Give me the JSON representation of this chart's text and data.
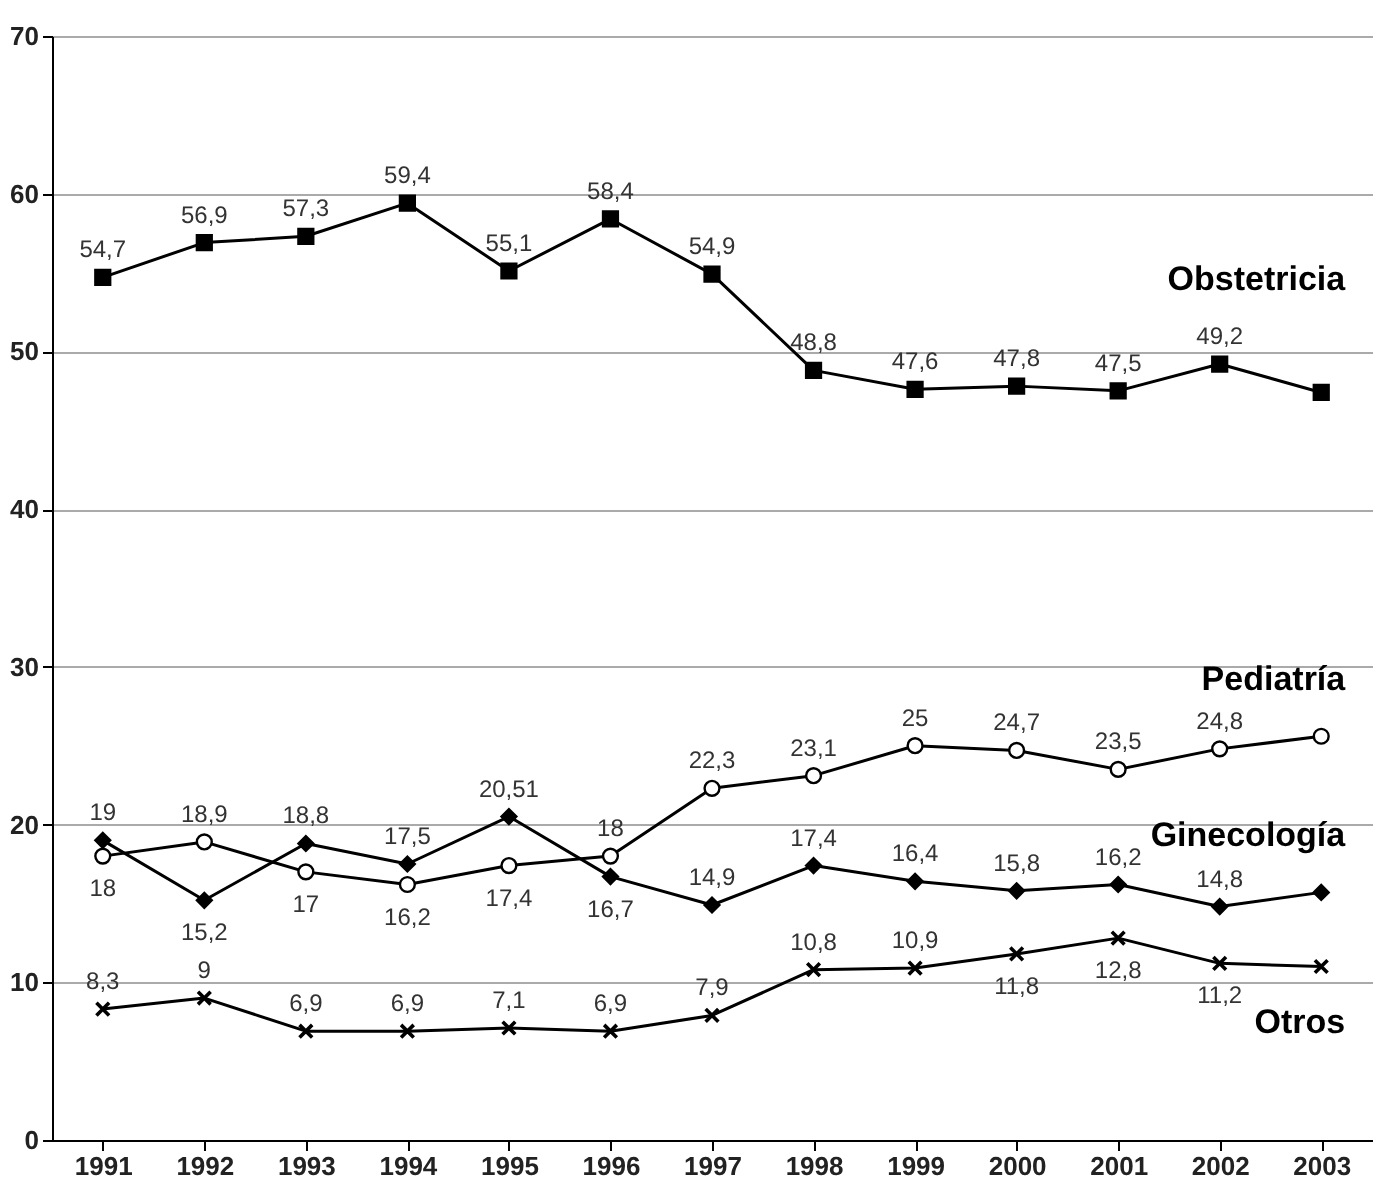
{
  "chart_data": {
    "type": "line",
    "categories": [
      "1991",
      "1992",
      "1993",
      "1994",
      "1995",
      "1996",
      "1997",
      "1998",
      "1999",
      "2000",
      "2001",
      "2002",
      "2003"
    ],
    "ylim": [
      0,
      70
    ],
    "yticks": [
      0,
      10,
      20,
      30,
      40,
      50,
      60,
      70
    ],
    "grid": "y",
    "series": [
      {
        "name": "Obstetricia",
        "color": "#000000",
        "marker": "square",
        "values": [
          54.7,
          56.9,
          57.3,
          59.4,
          55.1,
          58.4,
          54.9,
          48.8,
          47.6,
          47.8,
          47.5,
          49.2,
          47.4
        ],
        "value_labels": [
          "54,7",
          "56,9",
          "57,3",
          "59,4",
          "55,1",
          "58,4",
          "54,9",
          "48,8",
          "47,6",
          "47,8",
          "47,5",
          "49,2",
          null
        ]
      },
      {
        "name": "Pediatría",
        "color": "#000000",
        "marker": "circle",
        "values": [
          18,
          18.9,
          17,
          16.2,
          17.4,
          18,
          22.3,
          23.1,
          25,
          24.7,
          23.5,
          24.8,
          25.6
        ],
        "value_labels": [
          "18",
          "18,9",
          "17",
          "16,2",
          "17,4",
          "18",
          "22,3",
          "23,1",
          "25",
          "24,7",
          "23,5",
          "24,8",
          null
        ]
      },
      {
        "name": "Ginecología",
        "color": "#000000",
        "marker": "diamond",
        "values": [
          19,
          15.2,
          18.8,
          17.5,
          20.51,
          16.7,
          14.9,
          17.4,
          16.4,
          15.8,
          16.2,
          14.8,
          15.7
        ],
        "value_labels": [
          "19",
          "15,2",
          "18,8",
          "17,5",
          "20,51",
          "16,7",
          "14,9",
          "17,4",
          "16,4",
          "15,8",
          "16,2",
          "14,8",
          null
        ]
      },
      {
        "name": "Otros",
        "color": "#000000",
        "marker": "cross",
        "values": [
          8.3,
          9,
          6.9,
          6.9,
          7.1,
          6.9,
          7.9,
          10.8,
          10.9,
          11.8,
          12.8,
          11.2,
          11.0
        ],
        "value_labels": [
          "8,3",
          "9",
          "6,9",
          "6,9",
          "7,1",
          "6,9",
          "7,9",
          "10,8",
          "10,9",
          "11,8",
          "12,8",
          "11,2",
          null
        ]
      }
    ]
  }
}
